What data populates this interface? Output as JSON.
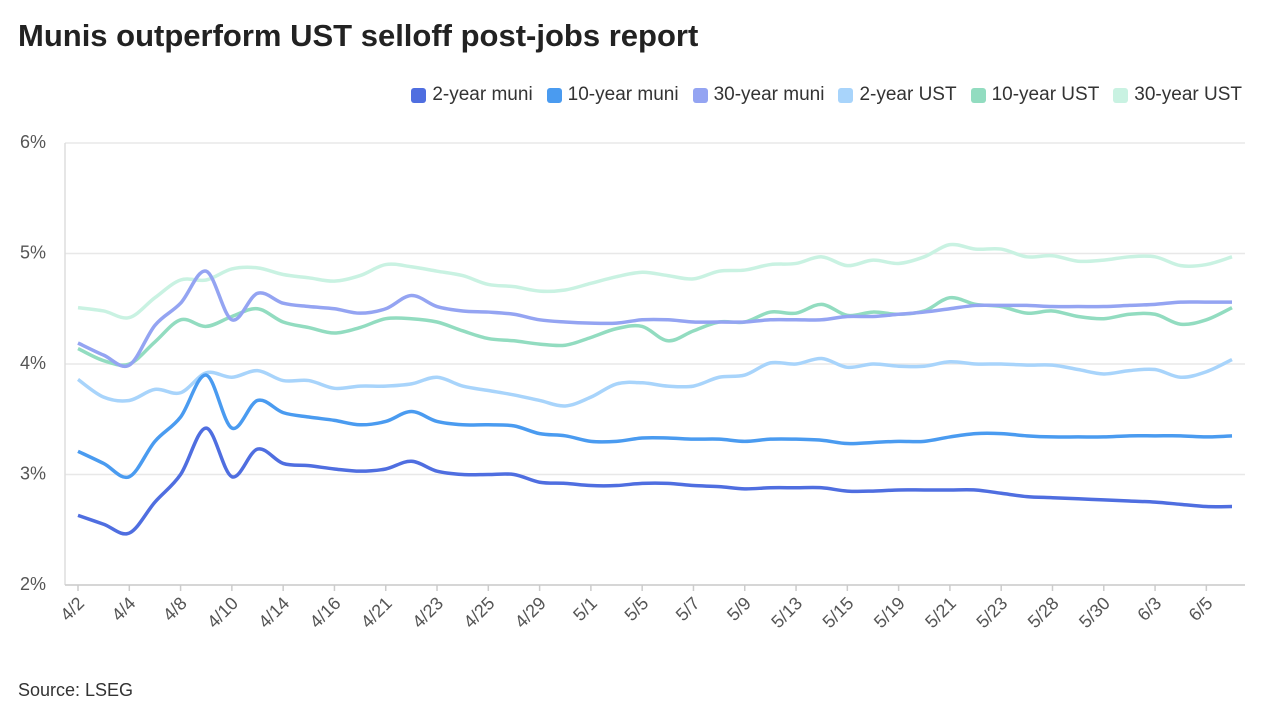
{
  "chart_data": {
    "type": "line",
    "title": "Munis outperform UST selloff post-jobs report",
    "source": "Source: LSEG",
    "categories": [
      "4/2",
      null,
      "4/4",
      null,
      "4/8",
      null,
      "4/10",
      null,
      "4/14",
      null,
      "4/16",
      null,
      "4/21",
      null,
      "4/23",
      null,
      "4/25",
      null,
      "4/29",
      null,
      "5/1",
      null,
      "5/5",
      null,
      "5/7",
      null,
      "5/9",
      null,
      "5/13",
      null,
      "5/15",
      null,
      "5/19",
      null,
      "5/21",
      null,
      "5/23",
      null,
      "5/28",
      null,
      "5/30",
      null,
      "6/3",
      null,
      "6/5",
      null
    ],
    "ylim": [
      2,
      6
    ],
    "yticks": [
      {
        "value": 2,
        "label": "2%"
      },
      {
        "value": 3,
        "label": "3%"
      },
      {
        "value": 4,
        "label": "4%"
      },
      {
        "value": 5,
        "label": "5%"
      },
      {
        "value": 6,
        "label": "6%"
      }
    ],
    "grid": true,
    "legend": "top-right",
    "series": [
      {
        "name": "2-year muni",
        "color": "#4f6ee0",
        "values": [
          2.63,
          2.55,
          2.47,
          2.75,
          3.0,
          3.42,
          2.98,
          3.23,
          3.1,
          3.08,
          3.05,
          3.03,
          3.05,
          3.12,
          3.03,
          3.0,
          3.0,
          3.0,
          2.93,
          2.92,
          2.9,
          2.9,
          2.92,
          2.92,
          2.9,
          2.89,
          2.87,
          2.88,
          2.88,
          2.88,
          2.85,
          2.85,
          2.86,
          2.86,
          2.86,
          2.86,
          2.83,
          2.8,
          2.79,
          2.78,
          2.77,
          2.76,
          2.75,
          2.73,
          2.71,
          2.71
        ]
      },
      {
        "name": "10-year muni",
        "color": "#4a9bf0",
        "values": [
          3.21,
          3.1,
          2.98,
          3.3,
          3.52,
          3.9,
          3.42,
          3.67,
          3.56,
          3.52,
          3.49,
          3.45,
          3.48,
          3.57,
          3.48,
          3.45,
          3.45,
          3.44,
          3.37,
          3.35,
          3.3,
          3.3,
          3.33,
          3.33,
          3.32,
          3.32,
          3.3,
          3.32,
          3.32,
          3.31,
          3.28,
          3.29,
          3.3,
          3.3,
          3.34,
          3.37,
          3.37,
          3.35,
          3.34,
          3.34,
          3.34,
          3.35,
          3.35,
          3.35,
          3.34,
          3.35
        ]
      },
      {
        "name": "30-year muni",
        "color": "#94a4f2",
        "values": [
          4.19,
          4.08,
          3.99,
          4.35,
          4.55,
          4.84,
          4.4,
          4.64,
          4.55,
          4.52,
          4.5,
          4.46,
          4.5,
          4.62,
          4.52,
          4.48,
          4.47,
          4.45,
          4.4,
          4.38,
          4.37,
          4.37,
          4.4,
          4.4,
          4.38,
          4.38,
          4.38,
          4.4,
          4.4,
          4.4,
          4.43,
          4.43,
          4.45,
          4.47,
          4.5,
          4.53,
          4.53,
          4.53,
          4.52,
          4.52,
          4.52,
          4.53,
          4.54,
          4.56,
          4.56,
          4.56
        ]
      },
      {
        "name": "2-year UST",
        "color": "#a8d4fb",
        "values": [
          3.86,
          3.7,
          3.67,
          3.77,
          3.74,
          3.92,
          3.88,
          3.94,
          3.85,
          3.85,
          3.78,
          3.8,
          3.8,
          3.82,
          3.88,
          3.8,
          3.76,
          3.72,
          3.67,
          3.62,
          3.7,
          3.82,
          3.83,
          3.8,
          3.8,
          3.88,
          3.9,
          4.01,
          4.0,
          4.05,
          3.97,
          4.0,
          3.98,
          3.98,
          4.02,
          4.0,
          4.0,
          3.99,
          3.99,
          3.95,
          3.91,
          3.94,
          3.95,
          3.88,
          3.93,
          4.04
        ]
      },
      {
        "name": "10-year UST",
        "color": "#92dcc0",
        "values": [
          4.14,
          4.03,
          4.0,
          4.2,
          4.4,
          4.34,
          4.43,
          4.5,
          4.38,
          4.33,
          4.28,
          4.33,
          4.41,
          4.41,
          4.38,
          4.3,
          4.23,
          4.21,
          4.18,
          4.17,
          4.24,
          4.32,
          4.34,
          4.21,
          4.3,
          4.38,
          4.38,
          4.47,
          4.46,
          4.54,
          4.44,
          4.47,
          4.45,
          4.48,
          4.6,
          4.54,
          4.52,
          4.46,
          4.48,
          4.43,
          4.41,
          4.45,
          4.45,
          4.36,
          4.4,
          4.51
        ]
      },
      {
        "name": "30-year UST",
        "color": "#c9f2e2",
        "values": [
          4.51,
          4.48,
          4.42,
          4.6,
          4.76,
          4.76,
          4.86,
          4.87,
          4.81,
          4.78,
          4.75,
          4.8,
          4.9,
          4.88,
          4.84,
          4.8,
          4.72,
          4.7,
          4.66,
          4.67,
          4.73,
          4.79,
          4.83,
          4.8,
          4.77,
          4.84,
          4.85,
          4.9,
          4.91,
          4.97,
          4.89,
          4.94,
          4.91,
          4.97,
          5.08,
          5.04,
          5.04,
          4.97,
          4.98,
          4.93,
          4.94,
          4.97,
          4.97,
          4.89,
          4.9,
          4.97
        ]
      }
    ]
  }
}
